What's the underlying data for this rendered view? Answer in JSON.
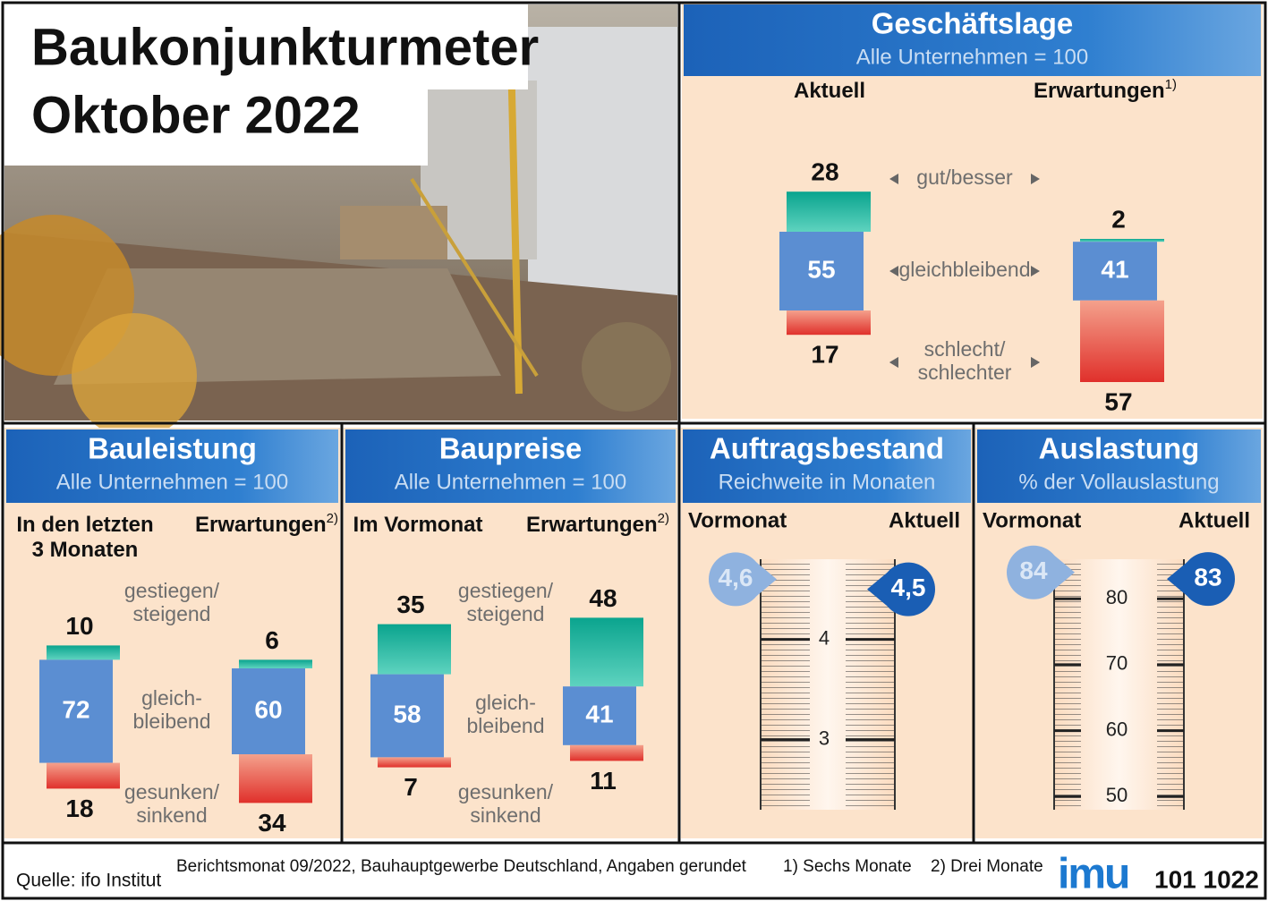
{
  "header": {
    "title": [
      "Baukonjunkturmeter",
      "Oktober 2022"
    ]
  },
  "stacked_panels": [
    {
      "title": "Geschäftslage",
      "subtitle": "Alle Unternehmen = 100",
      "row_labels": [
        [
          "gut/besser"
        ],
        [
          "gleichbleibend"
        ],
        [
          "schlecht/",
          "schlechter"
        ]
      ],
      "columns": [
        {
          "label": [
            "Aktuell"
          ],
          "values": [
            28,
            55,
            17
          ]
        },
        {
          "label": [
            "Erwartungen"
          ],
          "note": "1)",
          "values": [
            2,
            41,
            57
          ]
        }
      ]
    },
    {
      "title": "Bauleistung",
      "subtitle": "Alle Unternehmen = 100",
      "row_labels": [
        [
          "gestiegen/",
          "steigend"
        ],
        [
          "gleich-",
          "bleibend"
        ],
        [
          "gesunken/",
          "sinkend"
        ]
      ],
      "columns": [
        {
          "label": [
            "In den letzten",
            "3 Monaten"
          ],
          "values": [
            10,
            72,
            18
          ]
        },
        {
          "label": [
            "Erwartungen"
          ],
          "note": "2)",
          "values": [
            6,
            60,
            34
          ]
        }
      ]
    },
    {
      "title": "Baupreise",
      "subtitle": "Alle Unternehmen = 100",
      "row_labels": [
        [
          "gestiegen/",
          "steigend"
        ],
        [
          "gleich-",
          "bleibend"
        ],
        [
          "gesunken/",
          "sinkend"
        ]
      ],
      "columns": [
        {
          "label": [
            "Im Vormonat"
          ],
          "values": [
            35,
            58,
            7
          ]
        },
        {
          "label": [
            "Erwartungen"
          ],
          "note": "2)",
          "values": [
            48,
            41,
            11
          ]
        }
      ]
    }
  ],
  "gauge_panels": [
    {
      "title": "Auftragsbestand",
      "subtitle": "Reichweite in Monaten",
      "labels": [
        "Vormonat",
        "Aktuell"
      ],
      "values": [
        4.6,
        4.5
      ],
      "value_labels": [
        "4,6",
        "4,5"
      ],
      "ylim": [
        2.3,
        4.8
      ],
      "yticks": [
        3,
        4
      ]
    },
    {
      "title": "Auslastung",
      "subtitle": "% der Vollauslastung",
      "labels": [
        "Vormonat",
        "Aktuell"
      ],
      "values": [
        84,
        83
      ],
      "ylim": [
        48,
        86
      ],
      "yticks": [
        50,
        60,
        70,
        80
      ]
    }
  ],
  "footer": {
    "source": "Quelle: ifo Institut",
    "note": "Berichtsmonat 09/2022, Bauhauptgewerbe Deutschland, Angaben gerundet",
    "footnotes": [
      "1) Sechs Monate",
      "2) Drei Monate"
    ],
    "logo": "imu",
    "code": "101 1022"
  }
}
